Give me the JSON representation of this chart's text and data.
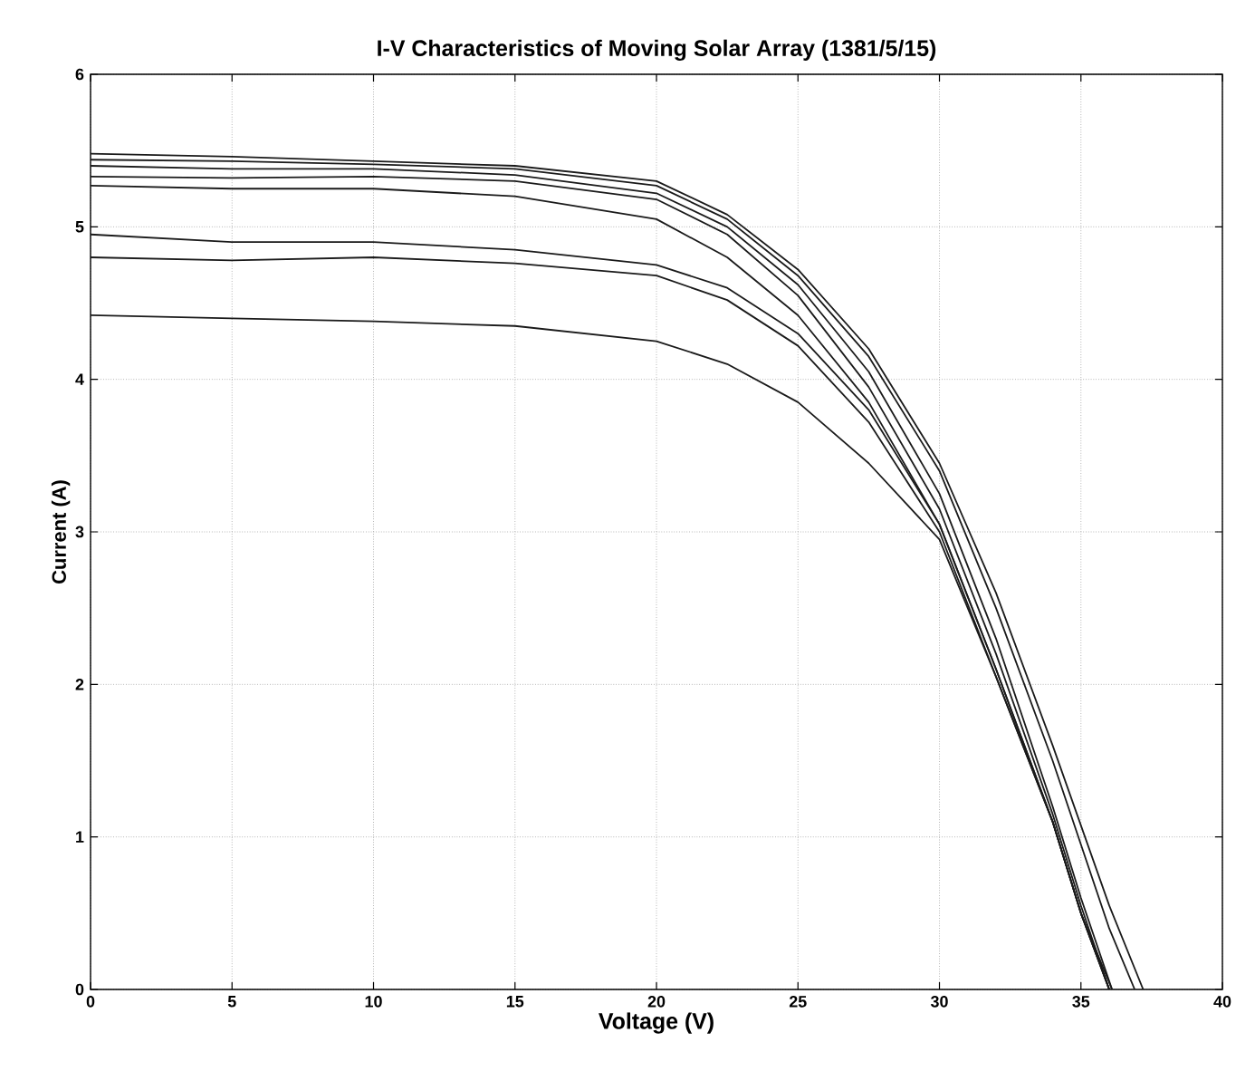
{
  "chart_data": {
    "type": "line",
    "title": "I-V Characteristics of Moving Solar Array (1381/5/15)",
    "xlabel": "Voltage (V)",
    "ylabel": "Current (A)",
    "xlim": [
      0,
      40
    ],
    "ylim": [
      0,
      6
    ],
    "xticks": [
      0,
      5,
      10,
      15,
      20,
      25,
      30,
      35,
      40
    ],
    "yticks": [
      0,
      1,
      2,
      3,
      4,
      5,
      6
    ],
    "grid": true,
    "marker": "none",
    "line_style": "solid",
    "series": [
      {
        "color": "#1a1a1a",
        "x": [
          0,
          5,
          10,
          15,
          20,
          22.5,
          25,
          27.5,
          30,
          32,
          34,
          36,
          37.2
        ],
        "values": [
          5.48,
          5.46,
          5.43,
          5.4,
          5.3,
          5.08,
          4.72,
          4.2,
          3.45,
          2.6,
          1.6,
          0.55,
          0
        ]
      },
      {
        "color": "#1a1a1a",
        "x": [
          0,
          5,
          10,
          15,
          20,
          22.5,
          25,
          27.5,
          30,
          32,
          34,
          36,
          36.9
        ],
        "values": [
          5.44,
          5.43,
          5.41,
          5.38,
          5.27,
          5.05,
          4.68,
          4.15,
          3.4,
          2.5,
          1.5,
          0.4,
          0
        ]
      },
      {
        "color": "#1a1a1a",
        "x": [
          0,
          5,
          10,
          15,
          20,
          22.5,
          25,
          27.5,
          30,
          32,
          34,
          35,
          36.1
        ],
        "values": [
          5.4,
          5.38,
          5.38,
          5.34,
          5.22,
          5.0,
          4.62,
          4.05,
          3.25,
          2.3,
          1.2,
          0.6,
          0
        ]
      },
      {
        "color": "#1a1a1a",
        "x": [
          0,
          5,
          10,
          15,
          20,
          22.5,
          25,
          27.5,
          30,
          32,
          34,
          35,
          36.0
        ],
        "values": [
          5.33,
          5.32,
          5.33,
          5.3,
          5.18,
          4.95,
          4.55,
          3.95,
          3.15,
          2.2,
          1.15,
          0.55,
          0
        ]
      },
      {
        "color": "#1a1a1a",
        "x": [
          0,
          5,
          10,
          15,
          20,
          22.5,
          25,
          27.5,
          30,
          32,
          34,
          35,
          36.0
        ],
        "values": [
          5.27,
          5.25,
          5.25,
          5.2,
          5.05,
          4.8,
          4.42,
          3.85,
          3.05,
          2.1,
          1.1,
          0.5,
          0
        ]
      },
      {
        "color": "#1a1a1a",
        "x": [
          0,
          5,
          10,
          15,
          20,
          22.5,
          25,
          27.5,
          30,
          32,
          34,
          35,
          36.1
        ],
        "values": [
          4.95,
          4.9,
          4.9,
          4.85,
          4.75,
          4.6,
          4.3,
          3.8,
          3.05,
          2.1,
          1.1,
          0.5,
          0
        ]
      },
      {
        "color": "#1a1a1a",
        "x": [
          0,
          5,
          10,
          15,
          20,
          22.5,
          25,
          27.5,
          30,
          32,
          34,
          35,
          36.0
        ],
        "values": [
          4.8,
          4.78,
          4.8,
          4.76,
          4.68,
          4.52,
          4.22,
          3.72,
          3.0,
          2.05,
          1.1,
          0.5,
          0
        ]
      },
      {
        "color": "#1a1a1a",
        "x": [
          0,
          5,
          10,
          15,
          20,
          22.5,
          25,
          27.5,
          30,
          32,
          34,
          35,
          36.0
        ],
        "values": [
          4.42,
          4.4,
          4.38,
          4.35,
          4.25,
          4.1,
          3.85,
          3.45,
          2.95,
          2.05,
          1.1,
          0.5,
          0
        ]
      }
    ]
  }
}
